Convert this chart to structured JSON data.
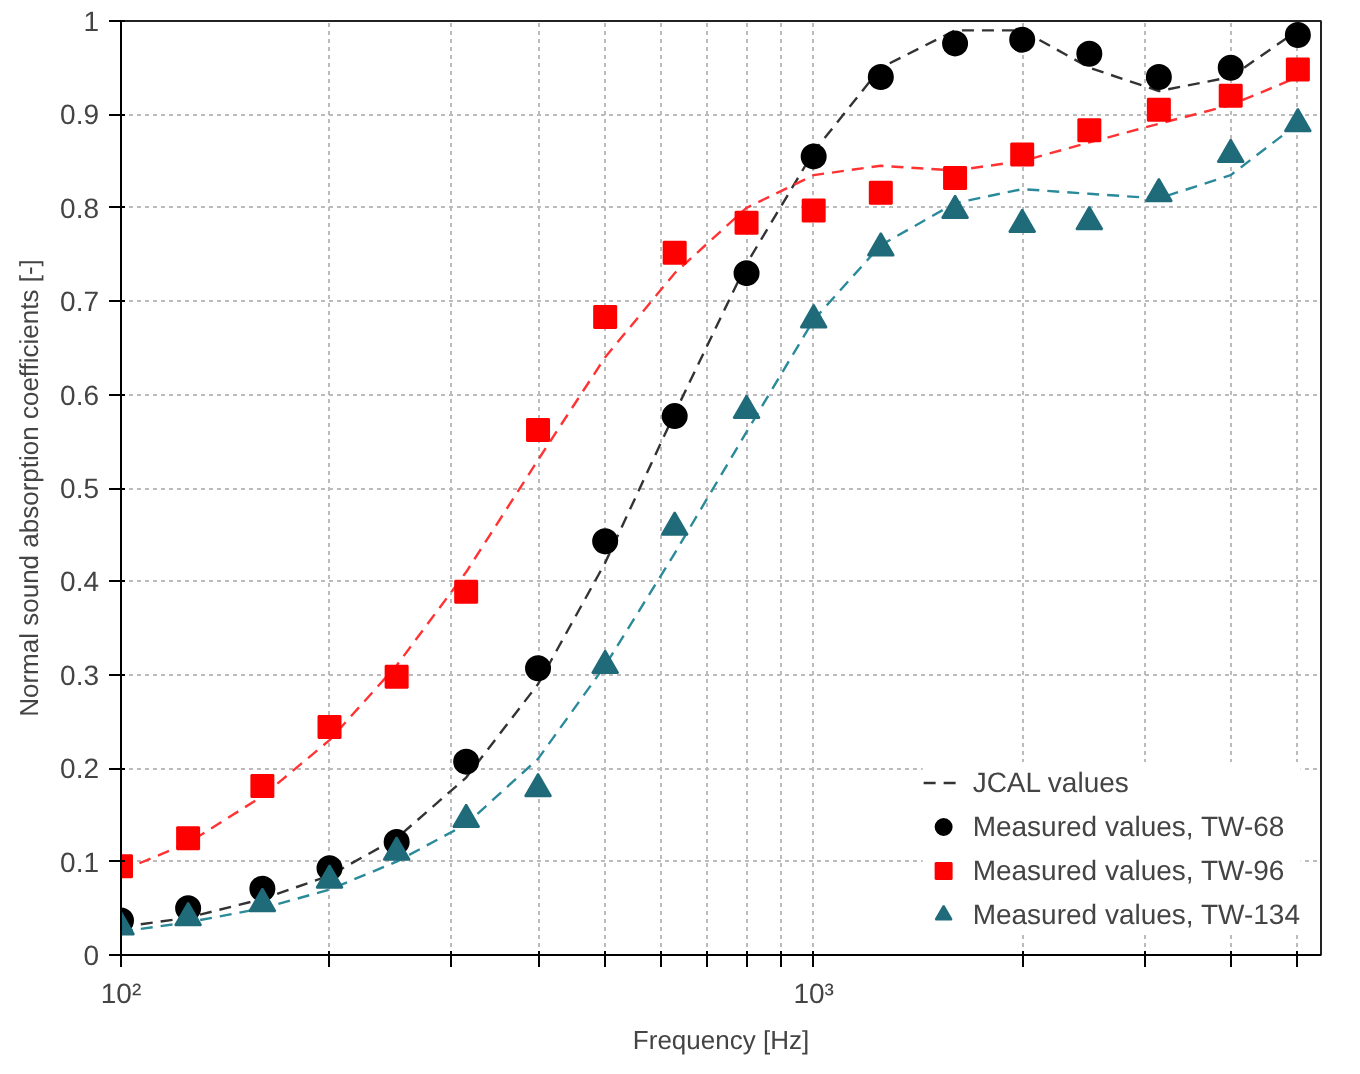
{
  "chart_data": {
    "type": "scatter",
    "xlabel": "Frequency [Hz]",
    "ylabel": "Normal sound absorption coefficients [-]",
    "log": "x",
    "grid": true,
    "legend": "bottom right",
    "x": [
      100,
      125,
      160,
      200,
      250,
      315,
      400,
      500,
      630,
      800,
      1000,
      1250,
      1600,
      2000,
      2500,
      3150,
      4000,
      5000
    ],
    "xlim": [
      100,
      5400
    ],
    "ylim": [
      0,
      1
    ],
    "xticks": [
      {
        "value": 100,
        "label": "10²"
      },
      {
        "value": 200,
        "label": null
      },
      {
        "value": 300,
        "label": null
      },
      {
        "value": 400,
        "label": null
      },
      {
        "value": 500,
        "label": null
      },
      {
        "value": 600,
        "label": null
      },
      {
        "value": 700,
        "label": null
      },
      {
        "value": 800,
        "label": null
      },
      {
        "value": 900,
        "label": null
      },
      {
        "value": 1000,
        "label": "10³"
      },
      {
        "value": 2000,
        "label": null
      },
      {
        "value": 3000,
        "label": null
      },
      {
        "value": 4000,
        "label": null
      },
      {
        "value": 5000,
        "label": null
      }
    ],
    "yticks": [
      0,
      0.1,
      0.2,
      0.3,
      0.4,
      0.5,
      0.6,
      0.7,
      0.8,
      0.9,
      1
    ],
    "series": [
      {
        "type": "line",
        "name": "JCAL values",
        "color": "#333333",
        "line_style": "dashed",
        "marker": "none",
        "values": [
          0.03,
          0.04,
          0.06,
          0.085,
          0.125,
          0.19,
          0.29,
          0.42,
          0.58,
          0.74,
          0.86,
          0.95,
          0.99,
          0.99,
          0.95,
          0.925,
          0.94,
          0.99
        ]
      },
      {
        "type": "line",
        "color": "#ff3333",
        "line_style": "dashed",
        "marker": "none",
        "values": [
          0.09,
          0.12,
          0.17,
          0.23,
          0.31,
          0.41,
          0.53,
          0.64,
          0.73,
          0.8,
          0.835,
          0.845,
          0.84,
          0.85,
          0.87,
          0.89,
          0.91,
          0.94
        ]
      },
      {
        "type": "line",
        "color": "#2a8a9a",
        "line_style": "dashed",
        "marker": "none",
        "values": [
          0.025,
          0.035,
          0.05,
          0.07,
          0.1,
          0.14,
          0.21,
          0.31,
          0.43,
          0.56,
          0.68,
          0.76,
          0.805,
          0.82,
          0.815,
          0.81,
          0.835,
          0.89
        ]
      },
      {
        "name": "Measured values, TW-68",
        "color": "#000000",
        "marker": "circle",
        "values": [
          0.037,
          0.05,
          0.071,
          0.093,
          0.121,
          0.207,
          0.307,
          0.443,
          0.577,
          0.73,
          0.855,
          0.94,
          0.976,
          0.98,
          0.965,
          0.94,
          0.95,
          0.985
        ]
      },
      {
        "name": "Measured values, TW-96",
        "color": "#ff0000",
        "marker": "square",
        "values": [
          0.095,
          0.125,
          0.181,
          0.244,
          0.298,
          0.389,
          0.562,
          0.683,
          0.752,
          0.784,
          0.797,
          0.816,
          0.832,
          0.857,
          0.883,
          0.905,
          0.92,
          0.948
        ]
      },
      {
        "name": "Measured values, TW-134",
        "color": "#1f6b7a",
        "marker": "triangle",
        "values": [
          0.03,
          0.04,
          0.055,
          0.08,
          0.11,
          0.145,
          0.178,
          0.31,
          0.458,
          0.583,
          0.68,
          0.757,
          0.797,
          0.782,
          0.785,
          0.815,
          0.857,
          0.89
        ]
      }
    ]
  }
}
